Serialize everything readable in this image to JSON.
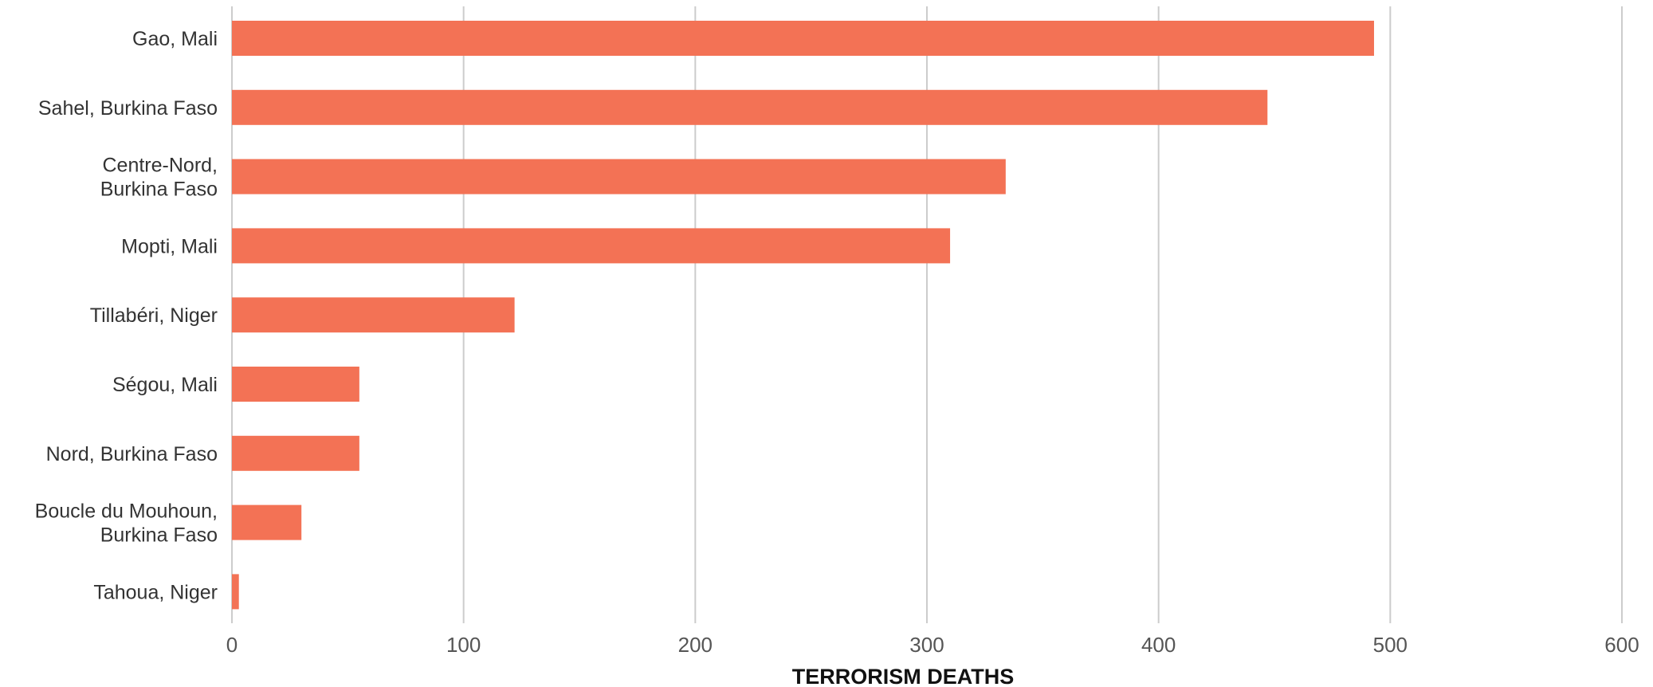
{
  "chart_data": {
    "type": "bar",
    "orientation": "horizontal",
    "categories": [
      "Gao, Mali",
      "Sahel, Burkina Faso",
      "Centre-Nord, Burkina Faso",
      "Mopti, Mali",
      "Tillabéri, Niger",
      "Ségou, Mali",
      "Nord, Burkina Faso",
      "Boucle du Mouhoun, Burkina Faso",
      "Tahoua, Niger"
    ],
    "category_lines": [
      [
        "Gao, Mali"
      ],
      [
        "Sahel, Burkina Faso"
      ],
      [
        "Centre-Nord,",
        "Burkina Faso"
      ],
      [
        "Mopti, Mali"
      ],
      [
        "Tillabéri, Niger"
      ],
      [
        "Ségou, Mali"
      ],
      [
        "Nord, Burkina Faso"
      ],
      [
        "Boucle du Mouhoun,",
        "Burkina Faso"
      ],
      [
        "Tahoua, Niger"
      ]
    ],
    "values": [
      493,
      447,
      334,
      310,
      122,
      55,
      55,
      30,
      3
    ],
    "xlabel": "TERRORISM DEATHS",
    "ylabel": "",
    "xlim": [
      0,
      600
    ],
    "xticks": [
      "0",
      "100",
      "200",
      "300",
      "400",
      "500",
      "600"
    ],
    "grid": "vertical",
    "bar_color": "#f37255",
    "grid_color": "#cccccc"
  }
}
